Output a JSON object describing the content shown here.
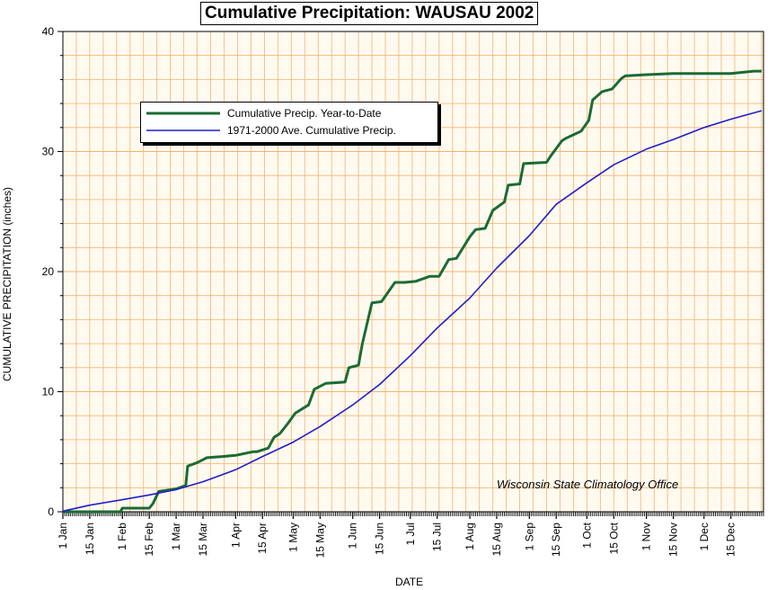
{
  "chart_data": {
    "type": "line",
    "title": "Cumulative Precipitation: WAUSAU 2002",
    "xlabel": "DATE",
    "ylabel": "CUMULATIVE PRECIPITATION (inches)",
    "ylim": [
      0,
      40
    ],
    "yticks": [
      0,
      10,
      20,
      30,
      40
    ],
    "xticks": [
      "1 Jan",
      "15 Jan",
      "1 Feb",
      "15 Feb",
      "1 Mar",
      "15 Mar",
      "1 Apr",
      "15 Apr",
      "1 May",
      "15 May",
      "1 Jun",
      "15 Jun",
      "1 Jul",
      "15 Jul",
      "1 Aug",
      "15 Aug",
      "1 Sep",
      "15 Sep",
      "1 Oct",
      "15 Oct",
      "1 Nov",
      "15 Nov",
      "1 Dec",
      "15 Dec"
    ],
    "xlim": [
      "2002-01-01",
      "2002-12-31"
    ],
    "grid": true,
    "legend_position": "upper-left",
    "series": [
      {
        "name": "Cumulative Precip. Year-to-Date",
        "color": "#1a6b35",
        "x": [
          "2002-01-01",
          "2002-01-31",
          "2002-02-01",
          "2002-02-15",
          "2002-02-17",
          "2002-02-20",
          "2002-03-01",
          "2002-03-06",
          "2002-03-07",
          "2002-03-12",
          "2002-03-17",
          "2002-03-25",
          "2002-04-01",
          "2002-04-10",
          "2002-04-12",
          "2002-04-18",
          "2002-04-21",
          "2002-04-24",
          "2002-04-28",
          "2002-05-02",
          "2002-05-09",
          "2002-05-12",
          "2002-05-18",
          "2002-05-28",
          "2002-05-30",
          "2002-06-04",
          "2002-06-06",
          "2002-06-11",
          "2002-06-16",
          "2002-06-23",
          "2002-06-28",
          "2002-07-04",
          "2002-07-11",
          "2002-07-16",
          "2002-07-21",
          "2002-07-25",
          "2002-08-01",
          "2002-08-04",
          "2002-08-09",
          "2002-08-13",
          "2002-08-19",
          "2002-08-21",
          "2002-08-27",
          "2002-08-29",
          "2002-09-10",
          "2002-09-12",
          "2002-09-18",
          "2002-09-20",
          "2002-09-28",
          "2002-10-02",
          "2002-10-04",
          "2002-10-09",
          "2002-10-14",
          "2002-10-19",
          "2002-10-21",
          "2002-10-31",
          "2002-11-15",
          "2002-12-02",
          "2002-12-15",
          "2002-12-27",
          "2002-12-31"
        ],
        "y": [
          0,
          0,
          0.3,
          0.3,
          0.7,
          1.7,
          1.9,
          2.2,
          3.8,
          4.1,
          4.5,
          4.6,
          4.7,
          5.0,
          5.0,
          5.3,
          6.2,
          6.5,
          7.3,
          8.2,
          8.9,
          10.2,
          10.7,
          10.8,
          12.0,
          12.2,
          14.0,
          17.4,
          17.5,
          19.1,
          19.1,
          19.2,
          19.6,
          19.6,
          21.0,
          21.1,
          22.9,
          23.5,
          23.6,
          25.1,
          25.8,
          27.2,
          27.3,
          29.0,
          29.1,
          29.6,
          30.9,
          31.1,
          31.7,
          32.6,
          34.3,
          35.0,
          35.2,
          36.1,
          36.3,
          36.4,
          36.5,
          36.5,
          36.5,
          36.7,
          36.7
        ]
      },
      {
        "name": "1971-2000 Ave. Cumulative Precip.",
        "color": "#1f1fcc",
        "x": [
          "2002-01-01",
          "2002-01-15",
          "2002-02-01",
          "2002-02-15",
          "2002-03-01",
          "2002-03-15",
          "2002-04-01",
          "2002-04-15",
          "2002-05-01",
          "2002-05-15",
          "2002-06-01",
          "2002-06-15",
          "2002-07-01",
          "2002-07-15",
          "2002-08-01",
          "2002-08-15",
          "2002-09-01",
          "2002-09-15",
          "2002-10-01",
          "2002-10-15",
          "2002-11-01",
          "2002-11-15",
          "2002-12-01",
          "2002-12-15",
          "2002-12-31"
        ],
        "y": [
          0.05,
          0.55,
          1.0,
          1.4,
          1.85,
          2.5,
          3.5,
          4.6,
          5.8,
          7.1,
          8.9,
          10.6,
          13.0,
          15.3,
          17.8,
          20.3,
          23.0,
          25.6,
          27.4,
          28.9,
          30.2,
          31.0,
          32.0,
          32.7,
          33.4
        ]
      }
    ],
    "annotation": "Wisconsin State Climatology Office"
  },
  "style": {
    "plot_bg": "#fffaf0",
    "grid_color": "#f3b36a"
  }
}
